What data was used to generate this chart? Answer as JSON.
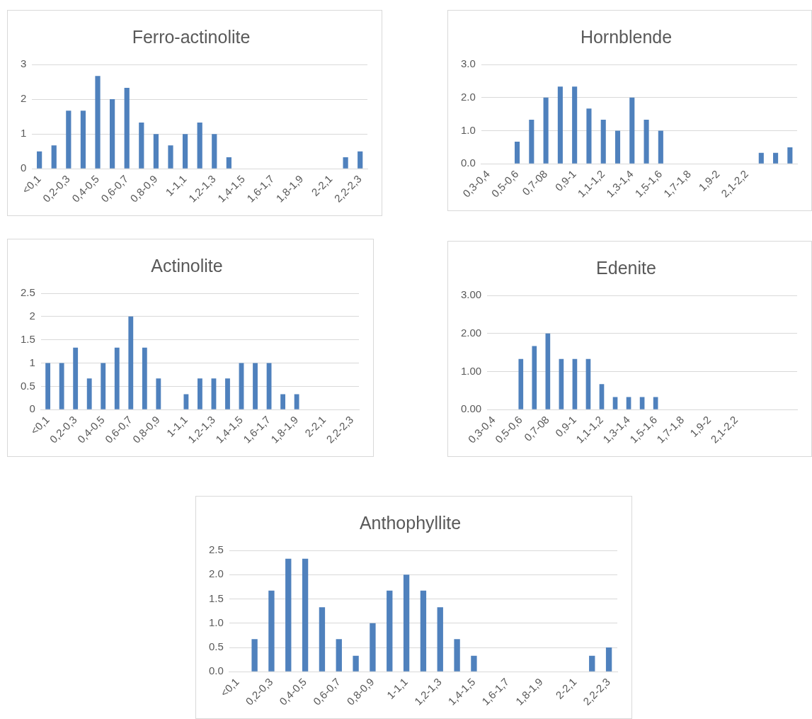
{
  "chart_data": [
    {
      "type": "bar",
      "title": "Ferro-actinolite",
      "categories": [
        "<0,1",
        null,
        "0,2-0,3",
        null,
        "0,4-0,5",
        null,
        "0,6-0,7",
        null,
        "0,8-0,9",
        null,
        "1-1,1",
        null,
        "1,2-1,3",
        null,
        "1,4-1,5",
        null,
        "1,6-1,7",
        null,
        "1,8-1,9",
        null,
        "2-2,1",
        null,
        "2,2-2,3"
      ],
      "values": [
        0.5,
        0.67,
        1.67,
        1.67,
        2.67,
        2,
        2.33,
        1.33,
        1,
        0.67,
        1,
        1.33,
        1,
        0.33,
        null,
        null,
        null,
        null,
        null,
        null,
        null,
        0.33,
        0.5
      ],
      "color": "#4f81bd",
      "ylim": [
        0,
        3
      ],
      "yticks": [
        0,
        1,
        2,
        3
      ],
      "grid": "y"
    },
    {
      "type": "bar",
      "title": "Hornblende",
      "categories": [
        "0,3-0,4",
        null,
        "0,5-0,6",
        null,
        "0,7-08",
        null,
        "0,9-1",
        null,
        "1,1-1,2",
        null,
        "1,3-1,4",
        null,
        "1,5-1,6",
        null,
        "1,7-1,8",
        null,
        "1,9-2",
        null,
        "2,1-2,2",
        null,
        null,
        null
      ],
      "values": [
        null,
        null,
        0.67,
        1.33,
        2,
        2.33,
        2.33,
        1.67,
        1.33,
        1,
        2,
        1.33,
        1,
        null,
        null,
        null,
        null,
        null,
        null,
        0.33,
        0.33,
        0.5
      ],
      "color": "#4f81bd",
      "ylim": [
        0,
        3
      ],
      "yticks": [
        {
          "value": 0,
          "label": "0.0"
        },
        {
          "value": 1,
          "label": "1.0"
        },
        {
          "value": 2,
          "label": "2.0"
        },
        {
          "value": 3,
          "label": "3.0"
        }
      ],
      "grid": "y"
    },
    {
      "type": "bar",
      "title": "Actinolite",
      "categories": [
        "<0,1",
        null,
        "0,2-0,3",
        null,
        "0,4-0,5",
        null,
        "0,6-0,7",
        null,
        "0,8-0,9",
        null,
        "1-1,1",
        null,
        "1,2-1,3",
        null,
        "1,4-1,5",
        null,
        "1,6-1,7",
        null,
        "1,8-1,9",
        null,
        "2-2,1",
        null,
        "2,2-2,3"
      ],
      "values": [
        1,
        1,
        1.33,
        0.67,
        1,
        1.33,
        2,
        1.33,
        0.67,
        null,
        0.33,
        0.67,
        0.67,
        0.67,
        1,
        1,
        1,
        0.33,
        0.33,
        null,
        null,
        null,
        null
      ],
      "color": "#4f81bd",
      "ylim": [
        0,
        2.5
      ],
      "yticks": [
        0,
        0.5,
        1,
        1.5,
        2,
        2.5
      ],
      "grid": "y"
    },
    {
      "type": "bar",
      "title": "Edenite",
      "categories": [
        "0,3-0,4",
        null,
        "0,5-0,6",
        null,
        "0,7-08",
        null,
        "0,9-1",
        null,
        "1,1-1,2",
        null,
        "1,3-1,4",
        null,
        "1,5-1,6",
        null,
        "1,7-1,8",
        null,
        "1,9-2",
        null,
        "2,1-2,2",
        null,
        null,
        null,
        null
      ],
      "values": [
        null,
        null,
        1.33,
        1.67,
        2,
        1.33,
        1.33,
        1.33,
        0.67,
        0.33,
        0.33,
        0.33,
        0.33,
        null,
        null,
        null,
        null,
        null,
        null,
        null,
        null,
        null,
        null
      ],
      "color": "#4f81bd",
      "ylim": [
        0,
        3
      ],
      "yticks": [
        {
          "value": 0,
          "label": "0.00"
        },
        {
          "value": 1,
          "label": "1.00"
        },
        {
          "value": 2,
          "label": "2.00"
        },
        {
          "value": 3,
          "label": "3.00"
        }
      ],
      "grid": "y"
    },
    {
      "type": "bar",
      "title": "Anthophyllite",
      "categories": [
        "<0,1",
        null,
        "0,2-0,3",
        null,
        "0,4-0,5",
        null,
        "0,6-0,7",
        null,
        "0,8-0,9",
        null,
        "1-1,1",
        null,
        "1,2-1,3",
        null,
        "1,4-1,5",
        null,
        "1,6-1,7",
        null,
        "1,8-1,9",
        null,
        "2-2,1",
        null,
        "2,2-2,3"
      ],
      "values": [
        null,
        0.67,
        1.67,
        2.33,
        2.33,
        1.33,
        0.67,
        0.33,
        1,
        1.67,
        2,
        1.67,
        1.33,
        0.67,
        0.33,
        null,
        null,
        null,
        null,
        null,
        null,
        0.33,
        0.5
      ],
      "color": "#4f81bd",
      "ylim": [
        0,
        2.5
      ],
      "yticks": [
        {
          "value": 0,
          "label": "0.0"
        },
        {
          "value": 0.5,
          "label": "0.5"
        },
        {
          "value": 1,
          "label": "1.0"
        },
        {
          "value": 1.5,
          "label": "1.5"
        },
        {
          "value": 2,
          "label": "2.0"
        },
        {
          "value": 2.5,
          "label": "2.5"
        }
      ],
      "grid": "y"
    }
  ]
}
